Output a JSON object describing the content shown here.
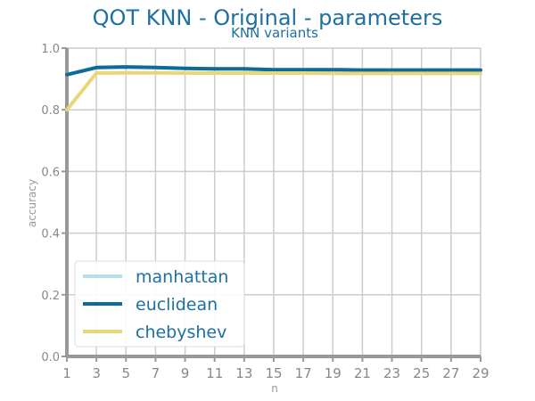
{
  "chart_data": {
    "type": "line",
    "title": "QOT KNN - Original - parameters",
    "subtitle": "KNN variants",
    "xlabel": "n",
    "ylabel": "accuracy",
    "x": [
      1,
      3,
      5,
      7,
      9,
      11,
      13,
      15,
      17,
      19,
      21,
      23,
      25,
      27,
      29
    ],
    "xlim": [
      1,
      29
    ],
    "ylim": [
      0.0,
      1.0
    ],
    "yticks": [
      "0.0",
      "0.2",
      "0.4",
      "0.6",
      "0.8",
      "1.0"
    ],
    "xticks": [
      "1",
      "3",
      "5",
      "7",
      "9",
      "11",
      "13",
      "15",
      "17",
      "19",
      "21",
      "23",
      "25",
      "27",
      "29"
    ],
    "grid": true,
    "legend_position": "bottom-left",
    "series": [
      {
        "name": "manhattan",
        "color": "#b7dde6",
        "values": [
          0.914,
          0.937,
          0.939,
          0.937,
          0.934,
          0.933,
          0.933,
          0.93,
          0.93,
          0.93,
          0.929,
          0.929,
          0.929,
          0.929,
          0.929
        ]
      },
      {
        "name": "euclidean",
        "color": "#0f6a9a",
        "values": [
          0.914,
          0.937,
          0.939,
          0.937,
          0.934,
          0.933,
          0.933,
          0.93,
          0.93,
          0.93,
          0.929,
          0.929,
          0.929,
          0.929,
          0.929
        ]
      },
      {
        "name": "chebyshev",
        "color": "#ead67a",
        "values": [
          0.8,
          0.919,
          0.92,
          0.92,
          0.919,
          0.919,
          0.919,
          0.919,
          0.919,
          0.918,
          0.918,
          0.918,
          0.918,
          0.918,
          0.918
        ]
      }
    ]
  }
}
